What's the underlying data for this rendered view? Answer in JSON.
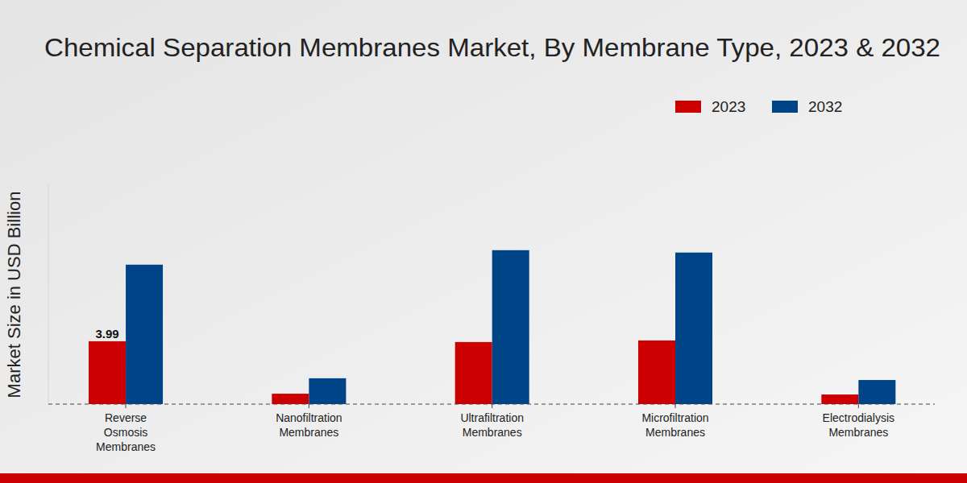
{
  "chart_data": {
    "type": "bar",
    "title": "Chemical Separation Membranes Market, By Membrane Type, 2023 & 2032",
    "y_label": "Market Size in USD Billion",
    "categories": [
      "Reverse Osmosis Membranes",
      "Nanofiltration Membranes",
      "Ultrafiltration Membranes",
      "Microfiltration Membranes",
      "Electrodialysis Membranes"
    ],
    "series": [
      {
        "name": "2023",
        "color": "#cc0000",
        "values": [
          3.99,
          0.66,
          3.94,
          4.04,
          0.61
        ],
        "value_labels": [
          "3.99",
          null,
          null,
          null,
          null
        ]
      },
      {
        "name": "2032",
        "color": "#004488",
        "values": [
          8.85,
          1.64,
          9.77,
          9.62,
          1.53
        ]
      }
    ],
    "ylim": [
      0,
      14
    ],
    "tick_labels": "x",
    "legend": "top-right",
    "grid": false
  }
}
